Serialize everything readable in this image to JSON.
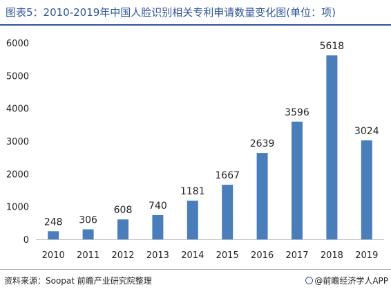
{
  "title": "图表5：2010-2019年中国人脸识别相关专利申请数量变化图(单位：项)",
  "source": "资料来源：Soopat 前瞻产业研究院整理",
  "brand": "@前瞻经济学人APP",
  "colors": {
    "bar": "#4a7ebb",
    "title": "#2f5597"
  },
  "chart_data": {
    "type": "bar",
    "title": "图表5：2010-2019年中国人脸识别相关专利申请数量变化图(单位：项)",
    "categories": [
      "2010",
      "2011",
      "2012",
      "2013",
      "2014",
      "2015",
      "2016",
      "2017",
      "2018",
      "2019"
    ],
    "values": [
      248,
      306,
      608,
      740,
      1181,
      1667,
      2639,
      3596,
      5618,
      3024
    ],
    "ylim": [
      0,
      6000
    ],
    "yticks": [
      0,
      1000,
      2000,
      3000,
      4000,
      5000,
      6000
    ],
    "xlabel": "",
    "ylabel": "",
    "grid": false,
    "legend": "none"
  }
}
